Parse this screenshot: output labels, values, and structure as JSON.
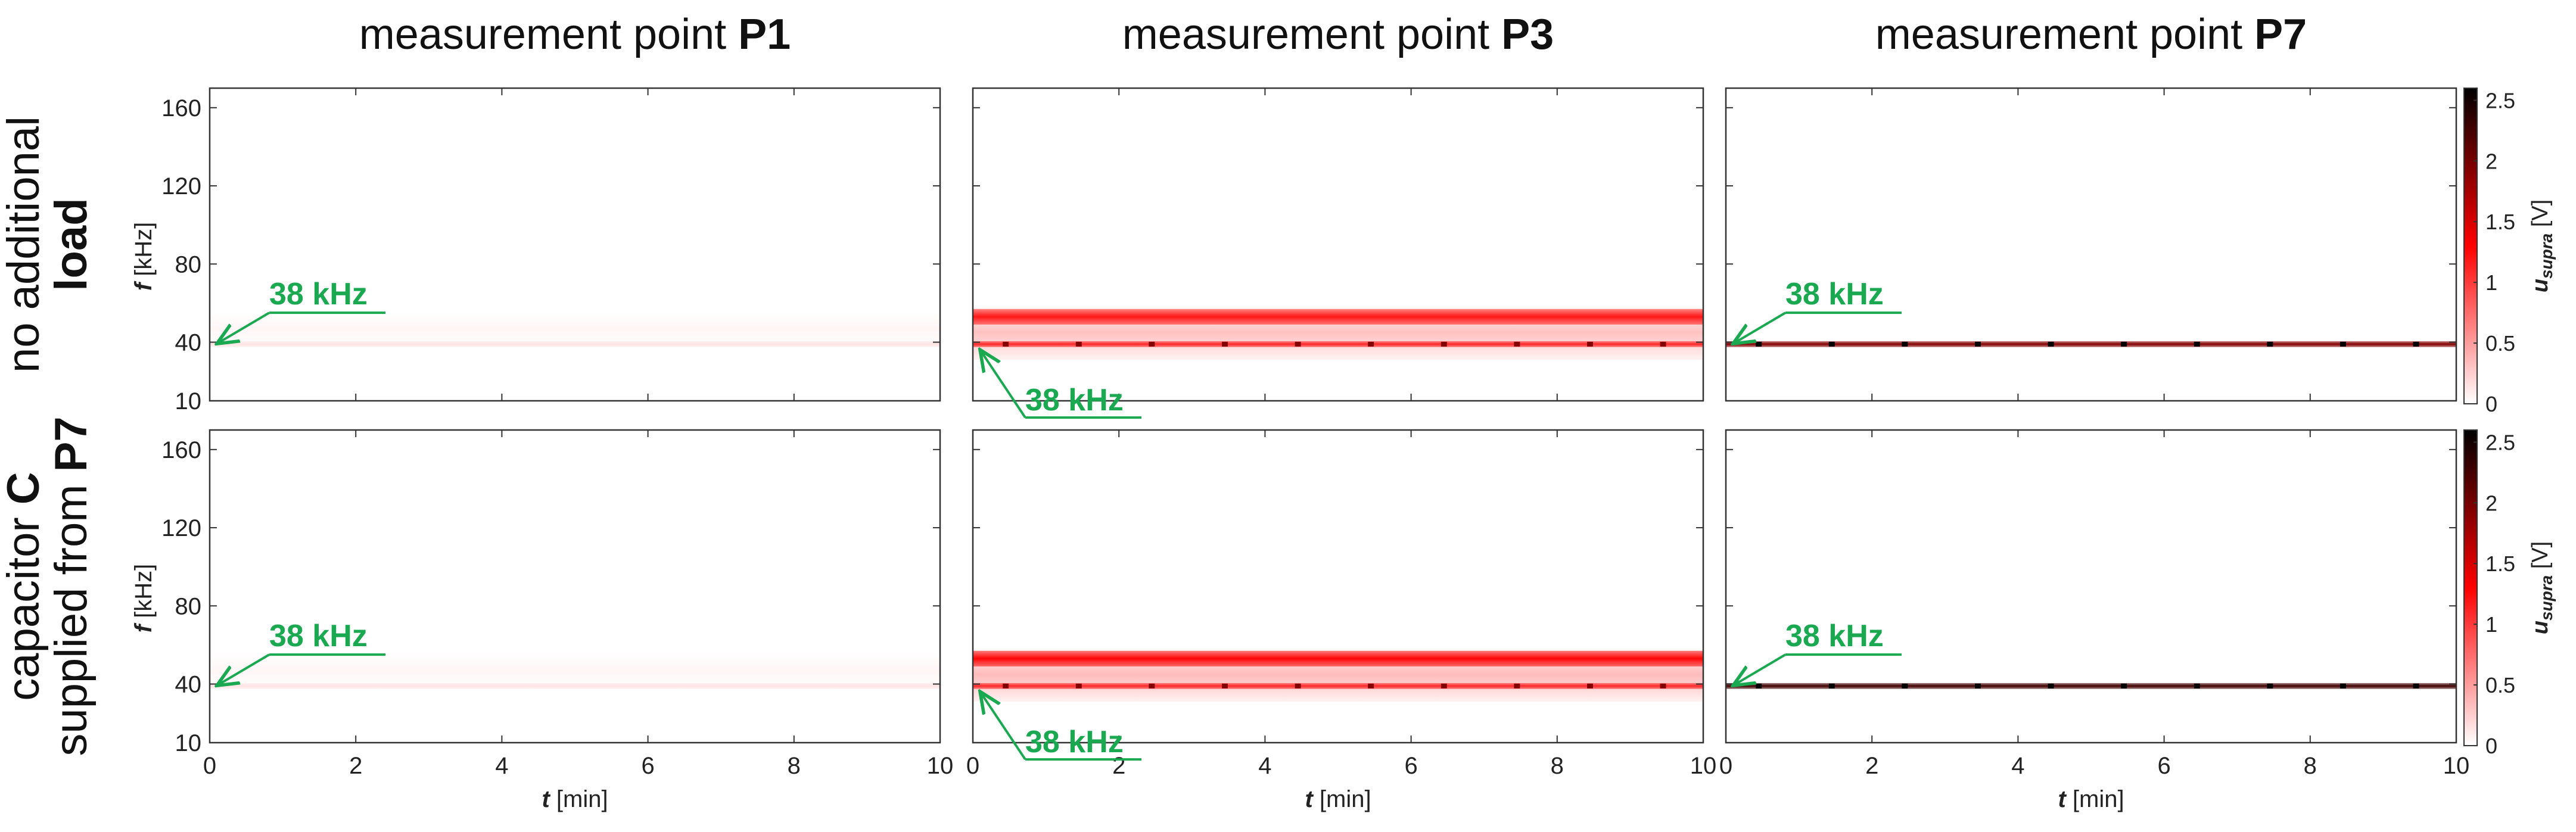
{
  "columns": [
    {
      "prefix": "measurement point ",
      "bold": "P1"
    },
    {
      "prefix": "measurement point ",
      "bold": "P3"
    },
    {
      "prefix": "measurement point ",
      "bold": "P7"
    }
  ],
  "rows": [
    {
      "lines": [
        {
          "parts": [
            {
              "t": "no additional",
              "b": false
            }
          ]
        },
        {
          "parts": [
            {
              "t": "load",
              "b": true
            }
          ]
        }
      ]
    },
    {
      "lines": [
        {
          "parts": [
            {
              "t": "capacitor ",
              "b": false
            },
            {
              "t": "C",
              "b": true
            }
          ]
        },
        {
          "parts": [
            {
              "t": "supplied from ",
              "b": false
            },
            {
              "t": "P7",
              "b": true
            }
          ]
        }
      ]
    }
  ],
  "axes": {
    "x_label_var": "t",
    "x_label_unit": " [min]",
    "y_label_var": "f",
    "y_label_unit": " [kHz]",
    "x_ticks": [
      "0",
      "2",
      "4",
      "6",
      "8",
      "10"
    ],
    "y_ticks": [
      "160",
      "120",
      "80",
      "40",
      "10"
    ]
  },
  "colorbar": {
    "label_var": "u",
    "label_sub": "supra",
    "label_unit": " [V]",
    "ticks": [
      "2.5",
      "2",
      "1.5",
      "1",
      "0.5",
      "0"
    ],
    "colors": [
      "#ffffff",
      "#ff0000",
      "#000000"
    ]
  },
  "annotation_text": "38 kHz",
  "annotation_color": "#1aa850",
  "chart_data": {
    "type": "heatmap",
    "x": {
      "name": "t",
      "unit": "min",
      "range": [
        0,
        10
      ],
      "ticks": [
        0,
        2,
        4,
        6,
        8,
        10
      ]
    },
    "y": {
      "name": "f",
      "unit": "kHz",
      "range": [
        10,
        170
      ],
      "ticks": [
        10,
        40,
        80,
        120,
        160
      ]
    },
    "z": {
      "name": "u_supra",
      "unit": "V",
      "range": [
        0,
        2.6
      ],
      "ticks": [
        0,
        0.5,
        1,
        1.5,
        2,
        2.5
      ]
    },
    "panels": [
      {
        "row": 0,
        "col": 0,
        "point": "P1",
        "condition": "no additional load",
        "bands": [
          {
            "f_center": 39,
            "f_halfwidth": 1.5,
            "u": 0.15
          },
          {
            "f_center": 47,
            "f_halfwidth": 9,
            "u": 0.05
          }
        ],
        "annotation": {
          "text": "38 kHz",
          "f": 38
        }
      },
      {
        "row": 0,
        "col": 1,
        "point": "P3",
        "condition": "no additional load",
        "bands": [
          {
            "f_center": 53,
            "f_halfwidth": 4,
            "u": 1.3
          },
          {
            "f_center": 45,
            "f_halfwidth": 14,
            "u": 0.35
          },
          {
            "f_center": 39,
            "f_halfwidth": 1.5,
            "u": 1.2
          }
        ],
        "annotation": {
          "text": "38 kHz",
          "f": 38
        }
      },
      {
        "row": 0,
        "col": 2,
        "point": "P7",
        "condition": "no additional load",
        "bands": [
          {
            "f_center": 39,
            "f_halfwidth": 1.5,
            "u": 2.0
          }
        ],
        "annotation": {
          "text": "38 kHz",
          "f": 38
        }
      },
      {
        "row": 1,
        "col": 0,
        "point": "P1",
        "condition": "capacitor C supplied from P7",
        "bands": [
          {
            "f_center": 39,
            "f_halfwidth": 1.5,
            "u": 0.15
          },
          {
            "f_center": 47,
            "f_halfwidth": 9,
            "u": 0.05
          }
        ],
        "annotation": {
          "text": "38 kHz",
          "f": 38
        }
      },
      {
        "row": 1,
        "col": 1,
        "point": "P3",
        "condition": "capacitor C supplied from P7",
        "bands": [
          {
            "f_center": 53,
            "f_halfwidth": 4,
            "u": 1.4
          },
          {
            "f_center": 45,
            "f_halfwidth": 14,
            "u": 0.38
          },
          {
            "f_center": 39,
            "f_halfwidth": 1.5,
            "u": 1.2
          }
        ],
        "annotation": {
          "text": "38 kHz",
          "f": 38
        }
      },
      {
        "row": 1,
        "col": 2,
        "point": "P7",
        "condition": "capacitor C supplied from P7",
        "bands": [
          {
            "f_center": 39,
            "f_halfwidth": 1.5,
            "u": 2.3
          }
        ],
        "annotation": {
          "text": "38 kHz",
          "f": 38
        }
      }
    ]
  }
}
